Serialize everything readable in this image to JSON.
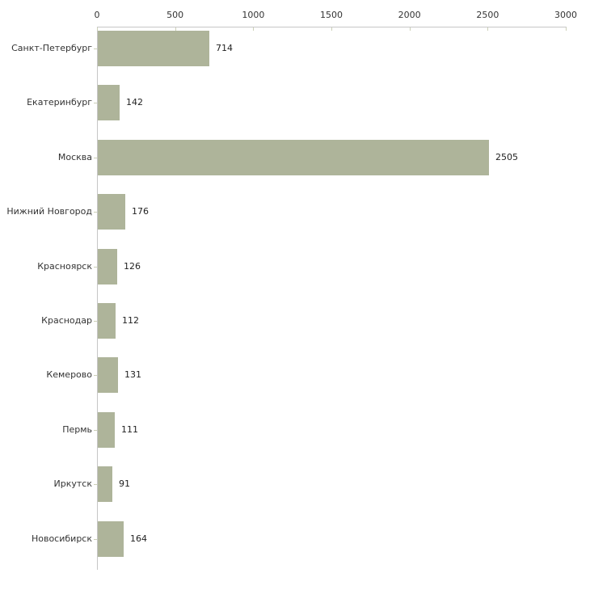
{
  "chart_data": {
    "type": "bar",
    "orientation": "horizontal",
    "title": "",
    "xlabel": "",
    "ylabel": "",
    "categories": [
      "Санкт-Петербург",
      "Екатеринбург",
      "Москва",
      "Нижний Новгород",
      "Красноярск",
      "Краснодар",
      "Кемерово",
      "Пермь",
      "Иркутск",
      "Новосибирск"
    ],
    "values": [
      714,
      142,
      2505,
      176,
      126,
      112,
      131,
      111,
      91,
      164
    ],
    "x_ticks": [
      0,
      500,
      1000,
      1500,
      2000,
      2500,
      3000
    ],
    "xlim": [
      0,
      3000
    ],
    "grid": false,
    "value_labels_shown": true,
    "axis_position": "top",
    "colors": {
      "bar": "#aeb49a",
      "axis_line": "#c6c6c6",
      "tick_mark": "#ccd0b8",
      "text": "#333333",
      "background": "#ffffff"
    }
  }
}
